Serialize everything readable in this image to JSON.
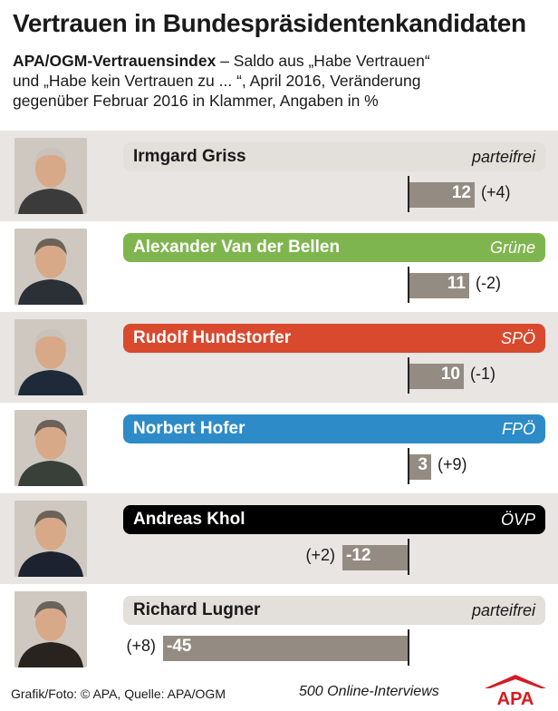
{
  "title": "Vertrauen in Bundespräsidentenkandidaten",
  "subtitle_bold": "APA/OGM-Vertrauensindex",
  "subtitle_line1": " – Saldo aus „Habe Vertrauen“",
  "subtitle_line2": "und „Habe kein Vertrauen zu ... “, April 2016, Veränderung",
  "subtitle_line3": "gegenüber Februar 2016 in Klammer, Angaben in %",
  "footer": {
    "credit": "Grafik/Foto: © APA, Quelle: APA/OGM",
    "sample": "500 Online-Interviews",
    "logo_text": "APA"
  },
  "colors": {
    "bar": "#948c82",
    "neutral": "#e3dfdb",
    "gruene": "#7fb54e",
    "spoe": "#d9492e",
    "fpoe": "#2d8bc7",
    "oevp": "#000000",
    "logo": "#d51b20"
  },
  "chart_data": {
    "type": "bar",
    "orientation": "horizontal",
    "title": "Vertrauen in Bundespräsidentenkandidaten",
    "categories": [
      "Irmgard Griss",
      "Alexander Van der Bellen",
      "Rudolf Hundstorfer",
      "Norbert Hofer",
      "Andreas Khol",
      "Richard Lugner"
    ],
    "parties": [
      "parteifrei",
      "Grüne",
      "SPÖ",
      "FPÖ",
      "ÖVP",
      "parteifrei"
    ],
    "values": [
      12,
      11,
      10,
      3,
      -12,
      -45
    ],
    "value_labels": [
      "12",
      "11",
      "10",
      "3",
      "-12",
      "-45"
    ],
    "changes": [
      "(+4)",
      "(-2)",
      "(-1)",
      "(+9)",
      "(+2)",
      "(+8)"
    ],
    "bar_colors": [
      "#e3dfdb",
      "#7fb54e",
      "#d9492e",
      "#2d8bc7",
      "#000000",
      "#e3dfdb"
    ],
    "name_colors": [
      "#1a1a1a",
      "#ffffff",
      "#ffffff",
      "#ffffff",
      "#ffffff",
      "#1a1a1a"
    ],
    "xlim": [
      -45,
      12
    ],
    "portraits": [
      "portrait-griss",
      "portrait-van-der-bellen",
      "portrait-hundstorfer",
      "portrait-hofer",
      "portrait-khol",
      "portrait-lugner"
    ]
  }
}
